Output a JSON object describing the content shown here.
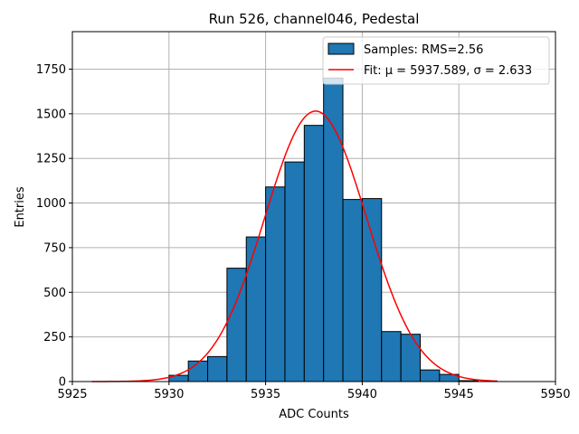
{
  "chart_data": {
    "type": "bar",
    "title": "Run 526, channel046, Pedestal",
    "xlabel": "ADC Counts",
    "ylabel": "Entries",
    "xlim": [
      5925,
      5950
    ],
    "ylim": [
      0,
      1960
    ],
    "xticks": [
      5925,
      5930,
      5935,
      5940,
      5945,
      5950
    ],
    "yticks": [
      0,
      250,
      500,
      750,
      1000,
      1250,
      1500,
      1750
    ],
    "grid": true,
    "legend_placement": "top-right",
    "histogram": {
      "name": "Samples: RMS=2.56",
      "bin_width": 1,
      "bin_starts": [
        5930,
        5931,
        5932,
        5933,
        5934,
        5935,
        5936,
        5937,
        5938,
        5939,
        5940,
        5941,
        5942,
        5943,
        5944,
        5945
      ],
      "counts": [
        35,
        115,
        140,
        635,
        810,
        1090,
        1230,
        1435,
        1700,
        1020,
        1025,
        280,
        265,
        65,
        40,
        5
      ],
      "fill_color": "#1f77b4",
      "edge_color": "#000000"
    },
    "fit": {
      "name": "Fit: μ = 5937.589, σ = 2.633",
      "mu": 5937.589,
      "sigma": 2.633,
      "amplitude": 1515,
      "x_range": [
        5926,
        5947
      ],
      "color": "#ff0000"
    }
  }
}
